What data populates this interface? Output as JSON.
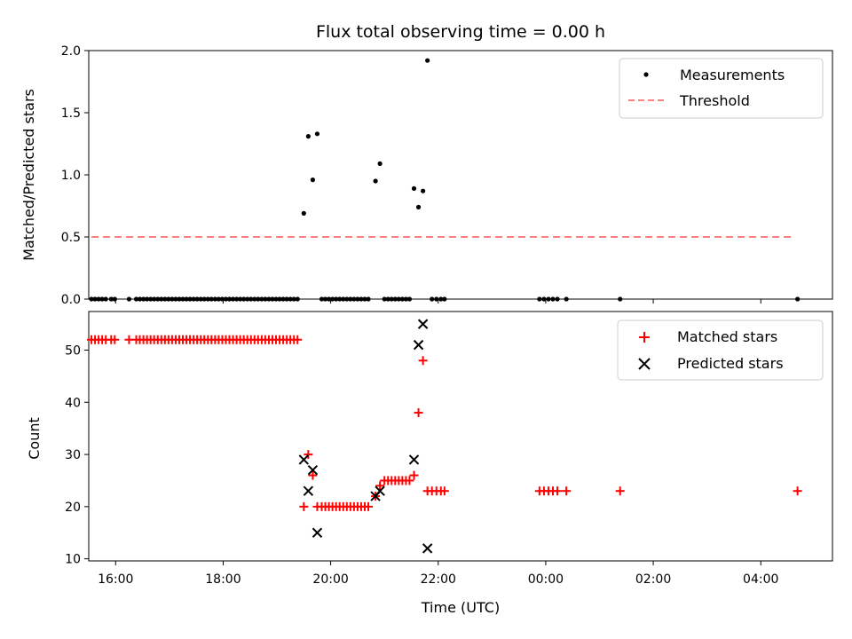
{
  "chart_data": [
    {
      "type": "scatter",
      "title": "Flux total observing time = 0.00 h",
      "xlabel": "",
      "ylabel": "Matched/Predicted stars",
      "xlim": [
        "15:30",
        "05:20"
      ],
      "ylim": [
        0,
        2.0
      ],
      "yticks": [
        "0.0",
        "0.5",
        "1.0",
        "1.5",
        "2.0"
      ],
      "grid": false,
      "legend_position": "top-right",
      "legend": [
        {
          "label": "Measurements",
          "marker": "dot",
          "color": "#000000"
        },
        {
          "label": "Threshold",
          "marker": "dashed-line",
          "color": "#ff7f7f"
        }
      ],
      "series": [
        {
          "name": "Measurements",
          "color": "#000000",
          "points": [
            [
              "15:33",
              0
            ],
            [
              "15:37",
              0
            ],
            [
              "15:41",
              0
            ],
            [
              "15:45",
              0
            ],
            [
              "15:49",
              0
            ],
            [
              "15:55",
              0
            ],
            [
              "15:59",
              0
            ],
            [
              "16:15",
              0
            ],
            [
              "16:23",
              0
            ],
            [
              "16:27",
              0
            ],
            [
              "16:31",
              0
            ],
            [
              "16:35",
              0
            ],
            [
              "16:39",
              0
            ],
            [
              "16:43",
              0
            ],
            [
              "16:47",
              0
            ],
            [
              "16:51",
              0
            ],
            [
              "16:55",
              0
            ],
            [
              "16:59",
              0
            ],
            [
              "17:03",
              0
            ],
            [
              "17:07",
              0
            ],
            [
              "17:11",
              0
            ],
            [
              "17:15",
              0
            ],
            [
              "17:19",
              0
            ],
            [
              "17:23",
              0
            ],
            [
              "17:27",
              0
            ],
            [
              "17:31",
              0
            ],
            [
              "17:35",
              0
            ],
            [
              "17:39",
              0
            ],
            [
              "17:43",
              0
            ],
            [
              "17:47",
              0
            ],
            [
              "17:51",
              0
            ],
            [
              "17:55",
              0
            ],
            [
              "17:59",
              0
            ],
            [
              "18:03",
              0
            ],
            [
              "18:07",
              0
            ],
            [
              "18:11",
              0
            ],
            [
              "18:15",
              0
            ],
            [
              "18:19",
              0
            ],
            [
              "18:23",
              0
            ],
            [
              "18:27",
              0
            ],
            [
              "18:31",
              0
            ],
            [
              "18:35",
              0
            ],
            [
              "18:39",
              0
            ],
            [
              "18:43",
              0
            ],
            [
              "18:47",
              0
            ],
            [
              "18:51",
              0
            ],
            [
              "18:55",
              0
            ],
            [
              "18:59",
              0
            ],
            [
              "19:03",
              0
            ],
            [
              "19:07",
              0
            ],
            [
              "19:11",
              0
            ],
            [
              "19:15",
              0
            ],
            [
              "19:19",
              0
            ],
            [
              "19:23",
              0
            ],
            [
              "19:30",
              0.69
            ],
            [
              "19:35",
              1.31
            ],
            [
              "19:40",
              0.96
            ],
            [
              "19:45",
              1.33
            ],
            [
              "19:50",
              0
            ],
            [
              "19:54",
              0
            ],
            [
              "19:58",
              0
            ],
            [
              "20:02",
              0
            ],
            [
              "20:06",
              0
            ],
            [
              "20:10",
              0
            ],
            [
              "20:14",
              0
            ],
            [
              "20:18",
              0
            ],
            [
              "20:22",
              0
            ],
            [
              "20:26",
              0
            ],
            [
              "20:30",
              0
            ],
            [
              "20:34",
              0
            ],
            [
              "20:38",
              0
            ],
            [
              "20:42",
              0
            ],
            [
              "20:50",
              0.95
            ],
            [
              "20:55",
              1.09
            ],
            [
              "21:00",
              0
            ],
            [
              "21:04",
              0
            ],
            [
              "21:08",
              0
            ],
            [
              "21:12",
              0
            ],
            [
              "21:16",
              0
            ],
            [
              "21:20",
              0
            ],
            [
              "21:24",
              0
            ],
            [
              "21:28",
              0
            ],
            [
              "21:33",
              0.89
            ],
            [
              "21:38",
              0.74
            ],
            [
              "21:43",
              0.87
            ],
            [
              "21:48",
              1.92
            ],
            [
              "21:53",
              0
            ],
            [
              "21:58",
              0
            ],
            [
              "22:03",
              0
            ],
            [
              "22:07",
              0
            ],
            [
              "23:53",
              0
            ],
            [
              "23:58",
              0
            ],
            [
              "00:03",
              0
            ],
            [
              "00:08",
              0
            ],
            [
              "00:13",
              0
            ],
            [
              "00:23",
              0
            ],
            [
              "01:23",
              0
            ],
            [
              "04:41",
              0
            ]
          ]
        },
        {
          "name": "Threshold",
          "color": "#ff7f7f",
          "points": [
            [
              "15:33",
              0.5
            ],
            [
              "04:36",
              0.5
            ]
          ]
        }
      ]
    },
    {
      "type": "scatter",
      "title": "",
      "xlabel": "Time (UTC)",
      "ylabel": "Count",
      "xlim": [
        "15:30",
        "05:20"
      ],
      "ylim": [
        9.6,
        57.4
      ],
      "yticks": [
        "10",
        "20",
        "30",
        "40",
        "50"
      ],
      "xticks": [
        "16:00",
        "18:00",
        "20:00",
        "22:00",
        "00:00",
        "02:00",
        "04:00"
      ],
      "grid": false,
      "legend_position": "top-right",
      "legend": [
        {
          "label": "Matched stars",
          "marker": "plus",
          "color": "#ff0000"
        },
        {
          "label": "Predicted stars",
          "marker": "x",
          "color": "#000000"
        }
      ],
      "series": [
        {
          "name": "Matched stars",
          "color": "#ff0000",
          "points": [
            [
              "15:33",
              52
            ],
            [
              "15:37",
              52
            ],
            [
              "15:41",
              52
            ],
            [
              "15:45",
              52
            ],
            [
              "15:49",
              52
            ],
            [
              "15:55",
              52
            ],
            [
              "15:59",
              52
            ],
            [
              "16:15",
              52
            ],
            [
              "16:23",
              52
            ],
            [
              "16:27",
              52
            ],
            [
              "16:31",
              52
            ],
            [
              "16:35",
              52
            ],
            [
              "16:39",
              52
            ],
            [
              "16:43",
              52
            ],
            [
              "16:47",
              52
            ],
            [
              "16:51",
              52
            ],
            [
              "16:55",
              52
            ],
            [
              "16:59",
              52
            ],
            [
              "17:03",
              52
            ],
            [
              "17:07",
              52
            ],
            [
              "17:11",
              52
            ],
            [
              "17:15",
              52
            ],
            [
              "17:19",
              52
            ],
            [
              "17:23",
              52
            ],
            [
              "17:27",
              52
            ],
            [
              "17:31",
              52
            ],
            [
              "17:35",
              52
            ],
            [
              "17:39",
              52
            ],
            [
              "17:43",
              52
            ],
            [
              "17:47",
              52
            ],
            [
              "17:51",
              52
            ],
            [
              "17:55",
              52
            ],
            [
              "17:59",
              52
            ],
            [
              "18:03",
              52
            ],
            [
              "18:07",
              52
            ],
            [
              "18:11",
              52
            ],
            [
              "18:15",
              52
            ],
            [
              "18:19",
              52
            ],
            [
              "18:23",
              52
            ],
            [
              "18:27",
              52
            ],
            [
              "18:31",
              52
            ],
            [
              "18:35",
              52
            ],
            [
              "18:39",
              52
            ],
            [
              "18:43",
              52
            ],
            [
              "18:47",
              52
            ],
            [
              "18:51",
              52
            ],
            [
              "18:55",
              52
            ],
            [
              "18:59",
              52
            ],
            [
              "19:03",
              52
            ],
            [
              "19:07",
              52
            ],
            [
              "19:11",
              52
            ],
            [
              "19:15",
              52
            ],
            [
              "19:19",
              52
            ],
            [
              "19:23",
              52
            ],
            [
              "19:30",
              20
            ],
            [
              "19:35",
              30
            ],
            [
              "19:40",
              26
            ],
            [
              "19:45",
              20
            ],
            [
              "19:50",
              20
            ],
            [
              "19:54",
              20
            ],
            [
              "19:58",
              20
            ],
            [
              "20:02",
              20
            ],
            [
              "20:06",
              20
            ],
            [
              "20:10",
              20
            ],
            [
              "20:14",
              20
            ],
            [
              "20:18",
              20
            ],
            [
              "20:22",
              20
            ],
            [
              "20:26",
              20
            ],
            [
              "20:30",
              20
            ],
            [
              "20:34",
              20
            ],
            [
              "20:38",
              20
            ],
            [
              "20:42",
              20
            ],
            [
              "20:50",
              22
            ],
            [
              "20:55",
              24
            ],
            [
              "21:00",
              25
            ],
            [
              "21:04",
              25
            ],
            [
              "21:08",
              25
            ],
            [
              "21:12",
              25
            ],
            [
              "21:16",
              25
            ],
            [
              "21:20",
              25
            ],
            [
              "21:24",
              25
            ],
            [
              "21:28",
              25
            ],
            [
              "21:33",
              26
            ],
            [
              "21:38",
              38
            ],
            [
              "21:43",
              48
            ],
            [
              "21:48",
              23
            ],
            [
              "21:53",
              23
            ],
            [
              "21:58",
              23
            ],
            [
              "22:03",
              23
            ],
            [
              "22:07",
              23
            ],
            [
              "23:53",
              23
            ],
            [
              "23:58",
              23
            ],
            [
              "00:03",
              23
            ],
            [
              "00:08",
              23
            ],
            [
              "00:13",
              23
            ],
            [
              "00:23",
              23
            ],
            [
              "01:23",
              23
            ],
            [
              "04:41",
              23
            ]
          ]
        },
        {
          "name": "Predicted stars",
          "color": "#000000",
          "points": [
            [
              "19:30",
              29
            ],
            [
              "19:35",
              23
            ],
            [
              "19:40",
              27
            ],
            [
              "19:45",
              15
            ],
            [
              "20:50",
              22
            ],
            [
              "20:55",
              23
            ],
            [
              "21:33",
              29
            ],
            [
              "21:38",
              51
            ],
            [
              "21:43",
              55
            ],
            [
              "21:48",
              12
            ]
          ]
        }
      ]
    }
  ]
}
